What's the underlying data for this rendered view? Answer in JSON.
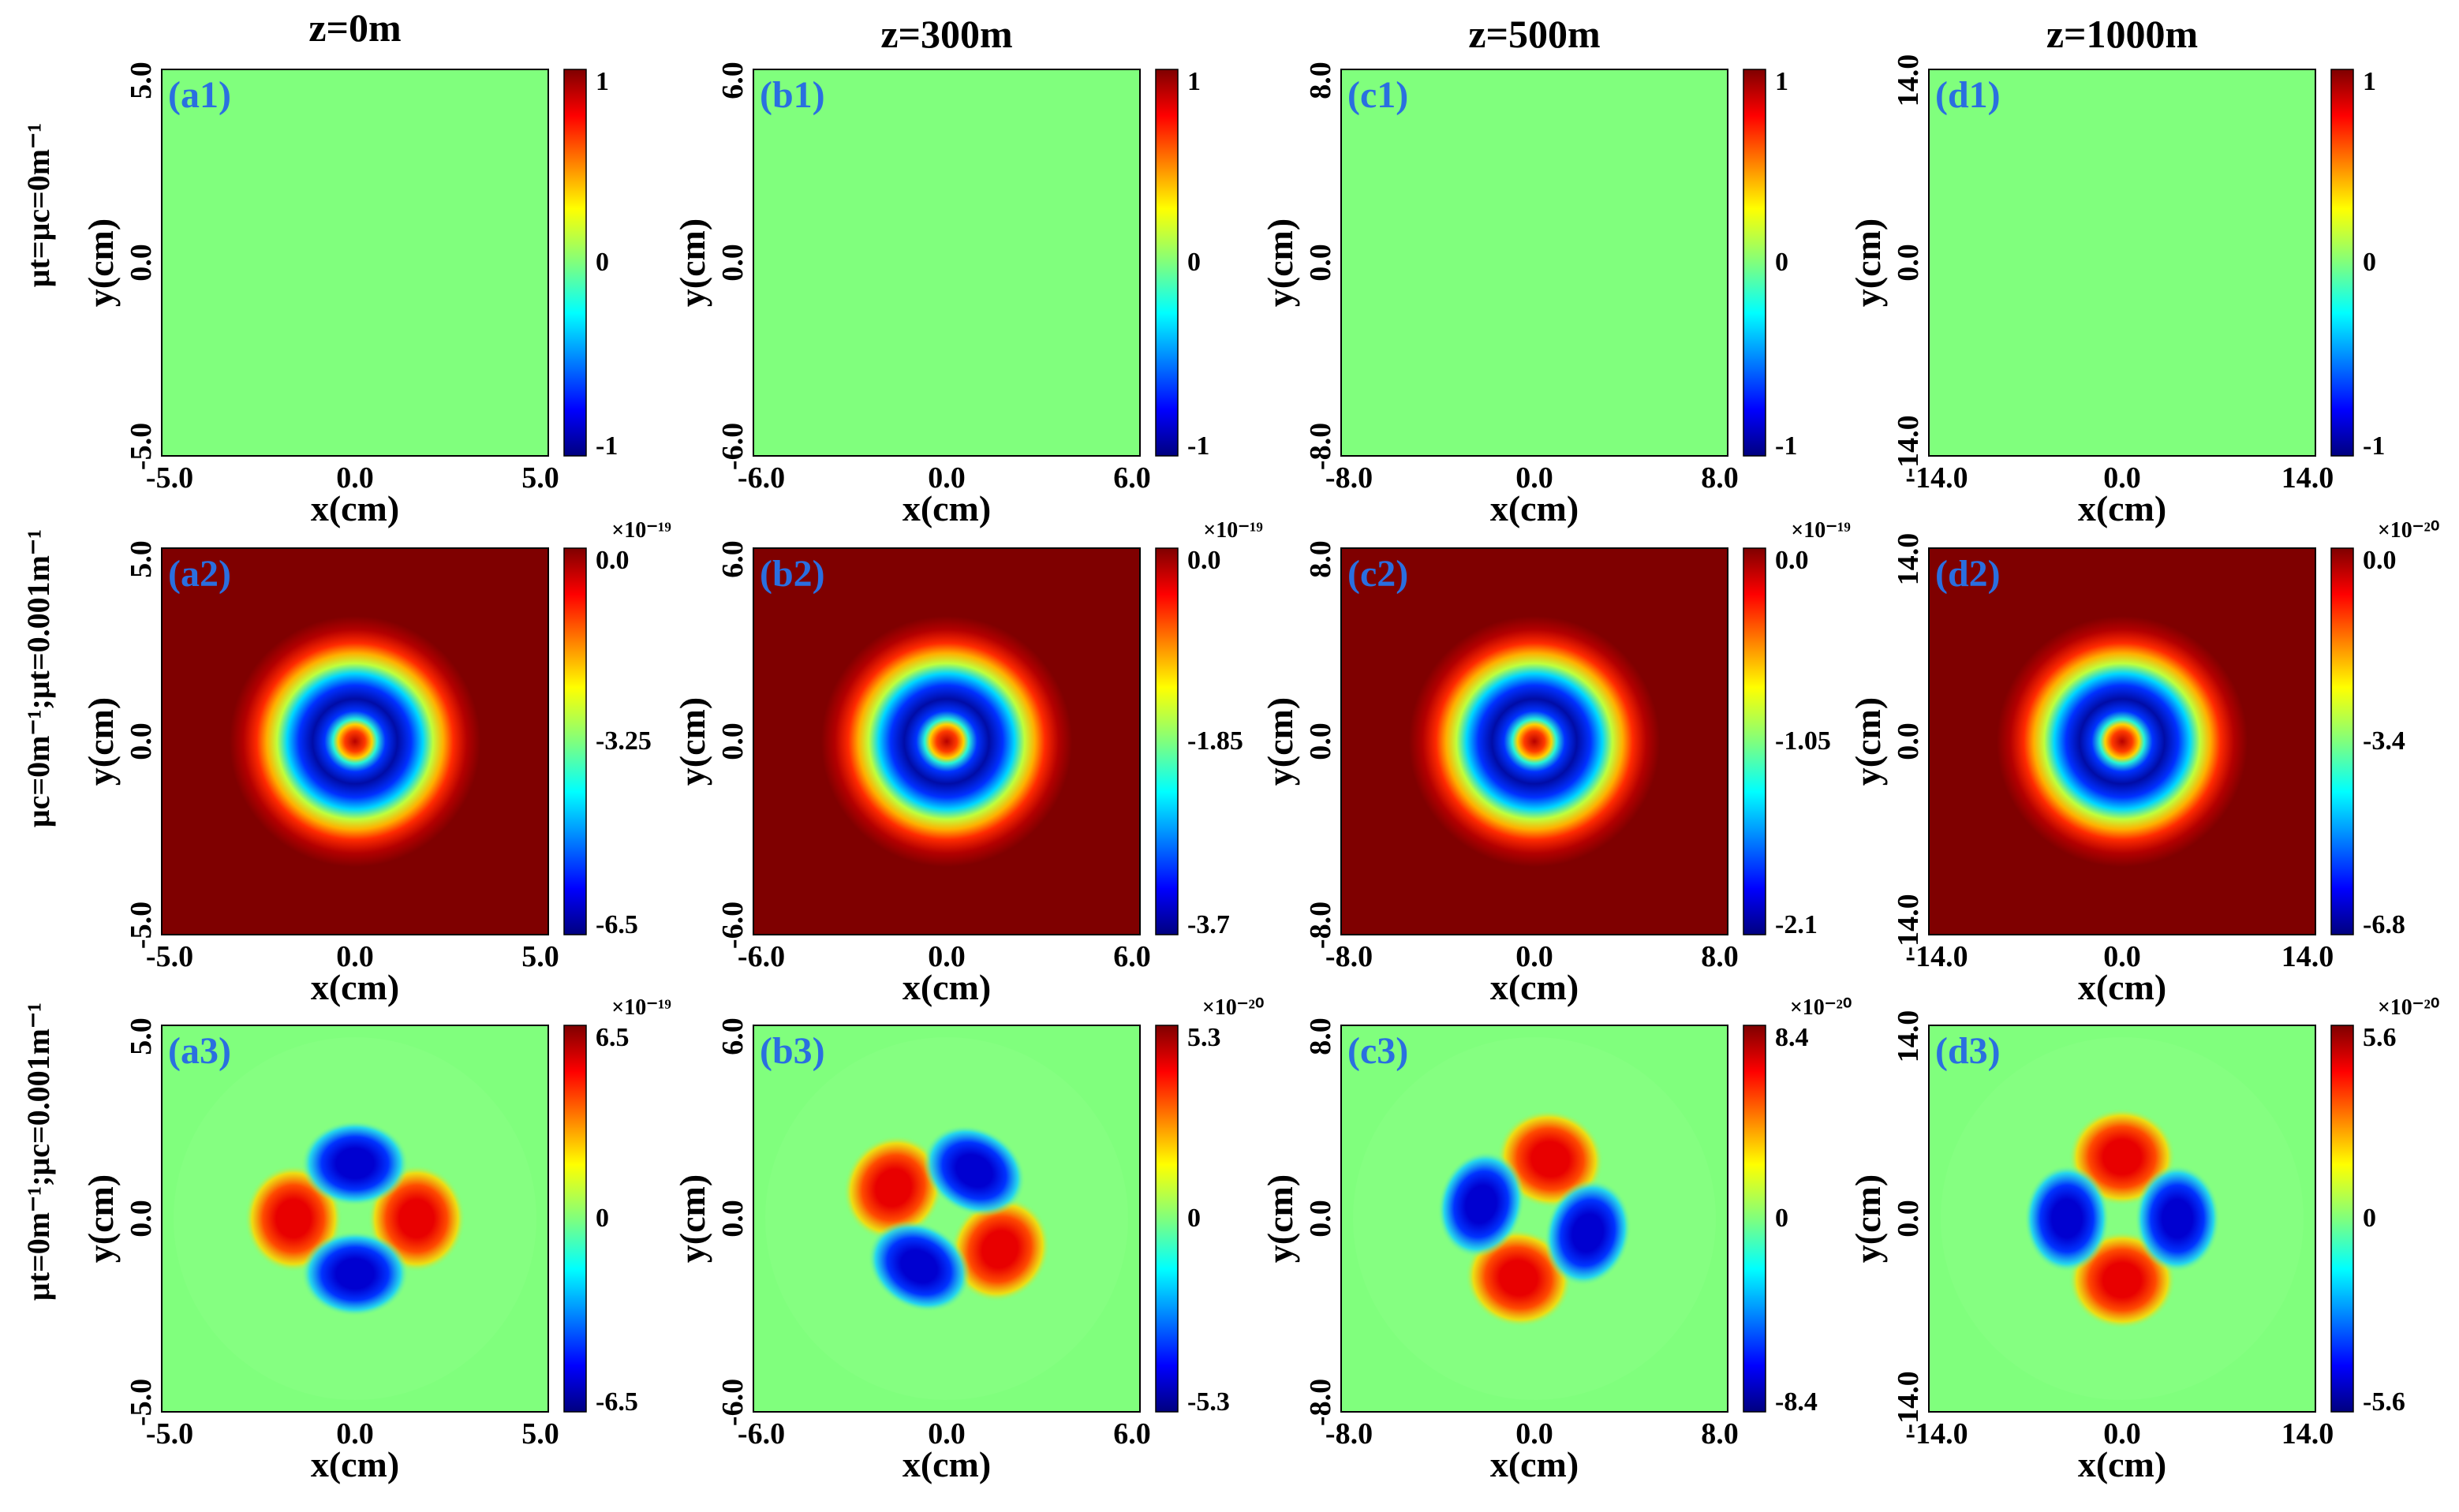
{
  "chart_data": {
    "type": "heatmap",
    "colormap": "jet",
    "column_titles": [
      "z=0m",
      "z=300m",
      "z=500m",
      "z=1000m"
    ],
    "row_labels": [
      "μt=μc=0m⁻¹",
      "μc=0m⁻¹;μt=0.001m⁻¹",
      "μt=0m⁻¹;μc=0.001m⁻¹"
    ],
    "x_axis_label": "x(cm)",
    "y_axis_label": "y(cm)",
    "columns": [
      {
        "tick_labels": [
          "-5.0",
          "0.0",
          "5.0"
        ],
        "range": [
          -5,
          5
        ]
      },
      {
        "tick_labels": [
          "-6.0",
          "0.0",
          "6.0"
        ],
        "range": [
          -6,
          6
        ]
      },
      {
        "tick_labels": [
          "-8.0",
          "0.0",
          "8.0"
        ],
        "range": [
          -8,
          8
        ]
      },
      {
        "tick_labels": [
          "-14.0",
          "0.0",
          "14.0"
        ],
        "range": [
          -14,
          14
        ]
      }
    ],
    "panels": [
      [
        {
          "label": "(a1)",
          "pattern": "uniform",
          "colorbar_ticks": [
            "1",
            "0",
            "-1"
          ],
          "colorbar_exponent": ""
        },
        {
          "label": "(b1)",
          "pattern": "uniform",
          "colorbar_ticks": [
            "1",
            "0",
            "-1"
          ],
          "colorbar_exponent": ""
        },
        {
          "label": "(c1)",
          "pattern": "uniform",
          "colorbar_ticks": [
            "1",
            "0",
            "-1"
          ],
          "colorbar_exponent": ""
        },
        {
          "label": "(d1)",
          "pattern": "uniform",
          "colorbar_ticks": [
            "1",
            "0",
            "-1"
          ],
          "colorbar_exponent": ""
        }
      ],
      [
        {
          "label": "(a2)",
          "pattern": "ring",
          "colorbar_ticks": [
            "0.0",
            "-3.25",
            "-6.5"
          ],
          "colorbar_exponent": "×10⁻¹⁹"
        },
        {
          "label": "(b2)",
          "pattern": "ring",
          "colorbar_ticks": [
            "0.0",
            "-1.85",
            "-3.7"
          ],
          "colorbar_exponent": "×10⁻¹⁹"
        },
        {
          "label": "(c2)",
          "pattern": "ring",
          "colorbar_ticks": [
            "0.0",
            "-1.05",
            "-2.1"
          ],
          "colorbar_exponent": "×10⁻¹⁹"
        },
        {
          "label": "(d2)",
          "pattern": "ring",
          "colorbar_ticks": [
            "0.0",
            "-3.4",
            "-6.8"
          ],
          "colorbar_exponent": "×10⁻²⁰"
        }
      ],
      [
        {
          "label": "(a3)",
          "pattern": "quad",
          "rotation_deg": 0,
          "colorbar_ticks": [
            "6.5",
            "0",
            "-6.5"
          ],
          "colorbar_exponent": "×10⁻¹⁹"
        },
        {
          "label": "(b3)",
          "pattern": "quad",
          "rotation_deg": 30,
          "colorbar_ticks": [
            "5.3",
            "0",
            "-5.3"
          ],
          "colorbar_exponent": "×10⁻²⁰"
        },
        {
          "label": "(c3)",
          "pattern": "quad",
          "rotation_deg": 105,
          "colorbar_ticks": [
            "8.4",
            "0",
            "-8.4"
          ],
          "colorbar_exponent": "×10⁻²⁰"
        },
        {
          "label": "(d3)",
          "pattern": "quad",
          "rotation_deg": 90,
          "colorbar_ticks": [
            "5.6",
            "0",
            "-5.6"
          ],
          "colorbar_exponent": "×10⁻²⁰"
        }
      ]
    ]
  }
}
